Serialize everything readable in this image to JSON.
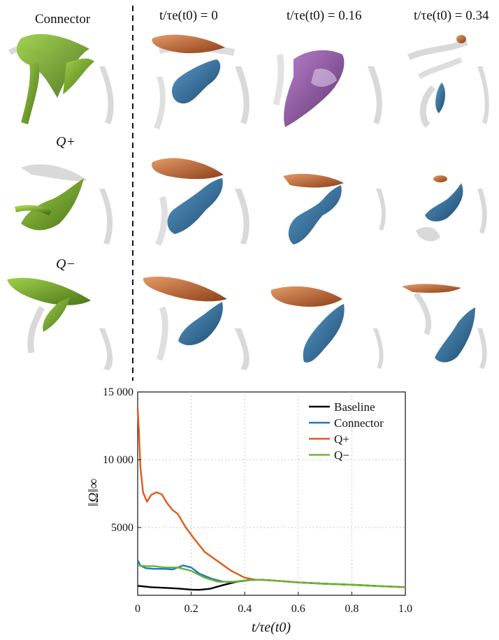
{
  "headers": {
    "connector": "Connector",
    "col1": "t/τe(t0) = 0",
    "col2": "t/τe(t0) = 0.16",
    "col3": "t/τe(t0) = 0.34"
  },
  "row_labels": {
    "qplus": "Q+",
    "qminus": "Q−"
  },
  "colors": {
    "connector": "#6f9b2a",
    "qplus": "#c4642e",
    "qminus": "#2b6c99",
    "merged": "#7a3a8c",
    "ghost": "#c8c8c8"
  },
  "chart_data": {
    "type": "line",
    "xlabel": "t/τe(t0)",
    "ylabel": "‖Ω‖∞",
    "xlim": [
      0,
      1.0
    ],
    "ylim": [
      0,
      15000
    ],
    "xticks": [
      "0",
      "0.2",
      "0.4",
      "0.6",
      "0.8",
      "1.0"
    ],
    "yticks": [
      "5000",
      "10 000",
      "15 000"
    ],
    "grid": true,
    "legend": "top-right",
    "series": [
      {
        "name": "Baseline",
        "color": "#000000",
        "x": [
          0,
          0.05,
          0.1,
          0.15,
          0.2,
          0.23,
          0.27,
          0.32,
          0.37,
          0.42,
          0.46,
          0.5,
          0.6,
          0.7,
          0.8,
          0.9,
          1.0
        ],
        "y": [
          700,
          600,
          550,
          500,
          420,
          400,
          480,
          760,
          1000,
          1130,
          1150,
          1100,
          950,
          850,
          780,
          680,
          600
        ]
      },
      {
        "name": "Connector",
        "color": "#1f78c8",
        "x": [
          0,
          0.01,
          0.03,
          0.06,
          0.1,
          0.13,
          0.17,
          0.2,
          0.23,
          0.28,
          0.32,
          0.36,
          0.42,
          0.46,
          0.5,
          0.6,
          0.7,
          0.8,
          0.9,
          1.0
        ],
        "y": [
          2600,
          2200,
          2000,
          1950,
          1950,
          1900,
          2200,
          2050,
          1600,
          1200,
          1000,
          1000,
          1120,
          1150,
          1100,
          950,
          850,
          780,
          680,
          600
        ]
      },
      {
        "name": "Q+",
        "color": "#e05a1c",
        "x": [
          0,
          0.005,
          0.01,
          0.02,
          0.035,
          0.05,
          0.07,
          0.09,
          0.11,
          0.13,
          0.15,
          0.18,
          0.21,
          0.25,
          0.3,
          0.35,
          0.4,
          0.44,
          0.5,
          0.6,
          0.7,
          0.8,
          0.9,
          1.0
        ],
        "y": [
          13800,
          12000,
          9500,
          7600,
          6900,
          7400,
          7600,
          7450,
          6800,
          6300,
          6000,
          5000,
          4200,
          3200,
          2500,
          1800,
          1300,
          1150,
          1100,
          950,
          850,
          780,
          680,
          600
        ]
      },
      {
        "name": "Q−",
        "color": "#6ab42d",
        "x": [
          0,
          0.03,
          0.06,
          0.1,
          0.15,
          0.2,
          0.25,
          0.3,
          0.35,
          0.4,
          0.45,
          0.5,
          0.6,
          0.7,
          0.8,
          0.9,
          1.0
        ],
        "y": [
          2200,
          2150,
          2150,
          2050,
          2050,
          1800,
          1300,
          1000,
          980,
          1100,
          1150,
          1100,
          950,
          850,
          780,
          680,
          600
        ]
      }
    ]
  }
}
